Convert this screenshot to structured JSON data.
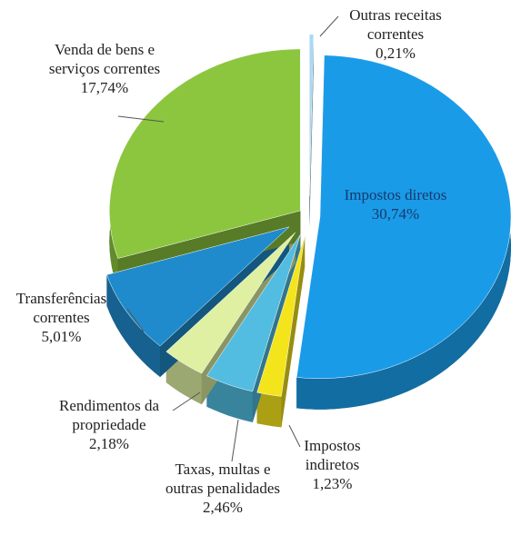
{
  "chart_data": {
    "type": "pie",
    "categories": [
      "Outras receitas correntes",
      "Impostos diretos",
      "Impostos indiretos",
      "Taxas, multas e outras penalidades",
      "Rendimentos da propriedade",
      "Transferências correntes",
      "Venda de bens e serviços correntes"
    ],
    "values": [
      0.21,
      30.74,
      1.23,
      2.46,
      2.18,
      5.01,
      17.74
    ],
    "value_labels": [
      "0,21%",
      "30,74%",
      "1,23%",
      "2,46%",
      "2,18%",
      "5,01%",
      "17,74%"
    ],
    "colors": [
      "#a8d8f4",
      "#1a9be8",
      "#f4e41c",
      "#52bde0",
      "#dff0a2",
      "#1f8bcc",
      "#8cc63f"
    ]
  }
}
